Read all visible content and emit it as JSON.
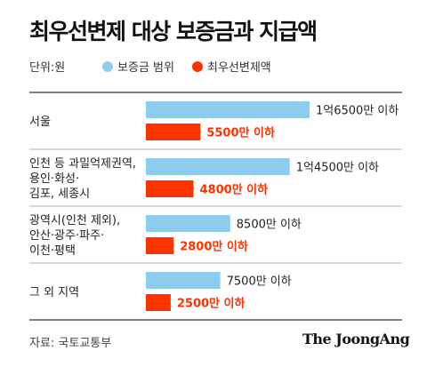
{
  "title": "최우선변제 대상 보증금과 지급액",
  "legend": {
    "unit": "단위:원",
    "items": [
      {
        "label": "보증금 범위",
        "color": "#8ecdf0"
      },
      {
        "label": "최우선변제액",
        "color": "#ff3300"
      }
    ]
  },
  "chart_data": {
    "type": "bar",
    "orientation": "horizontal",
    "unit": "만원",
    "xlim": [
      0,
      20000
    ],
    "categories": [
      [
        "서울"
      ],
      [
        "인천 등 과밀억제권역,",
        "용인·화성·",
        "김포, 세종시"
      ],
      [
        "광역시(인천 제외),",
        "안산·광주·파주·",
        "이천·평택"
      ],
      [
        "그 외 지역"
      ]
    ],
    "series": [
      {
        "name": "보증금 범위",
        "color": "#8ecdf0",
        "values": [
          16500,
          14500,
          8500,
          7500
        ],
        "labels": [
          "1억6500만 이하",
          "1억4500만 이하",
          "8500만 이하",
          "7500만 이하"
        ]
      },
      {
        "name": "최우선변제액",
        "color": "#ff3300",
        "values": [
          5500,
          4800,
          2800,
          2500
        ],
        "labels": [
          "5500만 이하",
          "4800만 이하",
          "2800만 이하",
          "2500만 이하"
        ]
      }
    ]
  },
  "source": "자료: 국토교통부",
  "brand": "The JoongAng"
}
